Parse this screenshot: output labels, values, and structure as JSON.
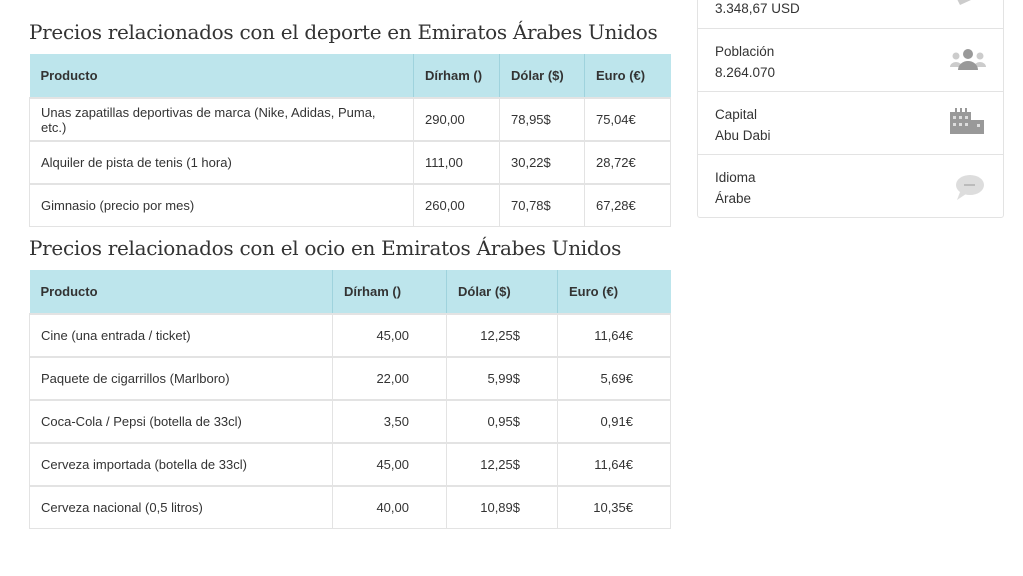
{
  "sport": {
    "title": "Precios relacionados con el deporte en Emiratos Árabes Unidos",
    "headers": [
      "Producto",
      "Dírham ()",
      "Dólar ($)",
      "Euro (€)"
    ],
    "rows": [
      [
        "Unas zapatillas deportivas de marca (Nike, Adidas, Puma, etc.)",
        "290,00",
        "78,95$",
        "75,04€"
      ],
      [
        "Alquiler de pista de tenis (1 hora)",
        "111,00",
        "30,22$",
        "28,72€"
      ],
      [
        "Gimnasio (precio por mes)",
        "260,00",
        "70,78$",
        "67,28€"
      ]
    ]
  },
  "leisure": {
    "title": "Precios relacionados con el ocio en Emiratos Árabes Unidos",
    "headers": [
      "Producto",
      "Dírham ()",
      "Dólar ($)",
      "Euro (€)"
    ],
    "rows": [
      [
        "Cine (una entrada / ticket)",
        "45,00",
        "12,25$",
        "11,64€"
      ],
      [
        "Paquete de cigarrillos (Marlboro)",
        "22,00",
        "5,99$",
        "5,69€"
      ],
      [
        "Coca-Cola / Pepsi (botella de 33cl)",
        "3,50",
        "0,95$",
        "0,91€"
      ],
      [
        "Cerveza importada (botella de 33cl)",
        "45,00",
        "12,25$",
        "11,64€"
      ],
      [
        "Cerveza nacional (0,5 litros)",
        "40,00",
        "10,89$",
        "10,35€"
      ]
    ]
  },
  "sidebar": {
    "items": [
      {
        "label": "",
        "value": "3.348,67 USD",
        "icon": "money-icon"
      },
      {
        "label": "Población",
        "value": "8.264.070",
        "icon": "users-icon"
      },
      {
        "label": "Capital",
        "value": "Abu Dabi",
        "icon": "city-icon"
      },
      {
        "label": "Idioma",
        "value": "Árabe",
        "icon": "comment-icon"
      }
    ]
  },
  "colors": {
    "header_bg": "#bde5ec",
    "icon": "#999999"
  }
}
